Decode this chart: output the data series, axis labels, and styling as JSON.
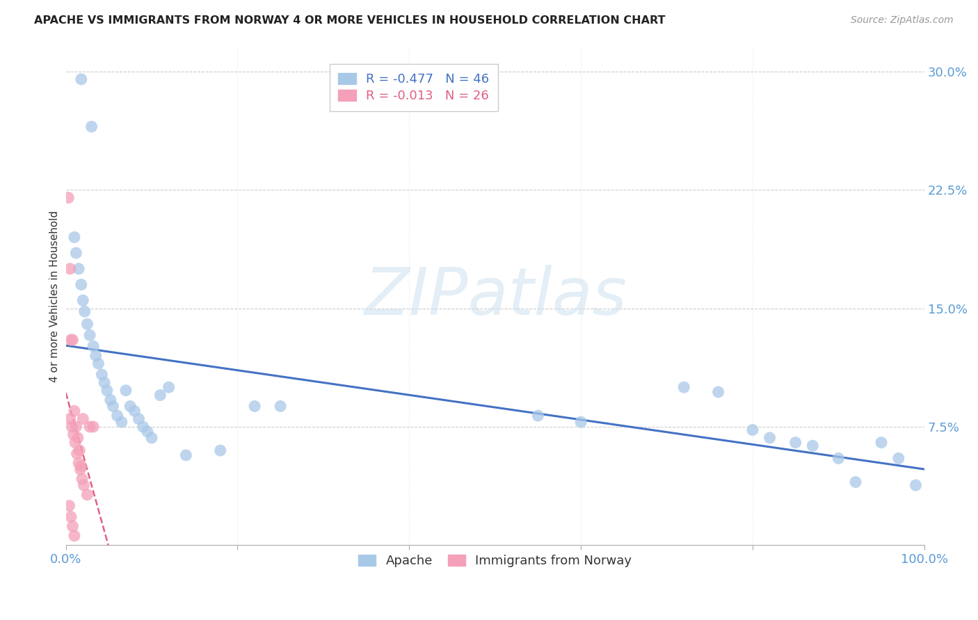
{
  "title": "APACHE VS IMMIGRANTS FROM NORWAY 4 OR MORE VEHICLES IN HOUSEHOLD CORRELATION CHART",
  "source": "Source: ZipAtlas.com",
  "ylabel": "4 or more Vehicles in Household",
  "apache_color": "#a8c8e8",
  "norway_color": "#f4a0b8",
  "apache_line_color": "#4472c4",
  "norway_line_color": "#e06080",
  "watermark_text": "ZIPatlas",
  "apache_x": [
    0.018,
    0.03,
    0.01,
    0.012,
    0.015,
    0.018,
    0.02,
    0.022,
    0.025,
    0.028,
    0.032,
    0.035,
    0.038,
    0.042,
    0.045,
    0.048,
    0.052,
    0.055,
    0.06,
    0.065,
    0.07,
    0.075,
    0.08,
    0.085,
    0.09,
    0.095,
    0.1,
    0.11,
    0.12,
    0.14,
    0.18,
    0.22,
    0.25,
    0.55,
    0.6,
    0.72,
    0.76,
    0.8,
    0.82,
    0.85,
    0.87,
    0.9,
    0.92,
    0.95,
    0.97,
    0.99
  ],
  "apache_y": [
    0.295,
    0.265,
    0.195,
    0.185,
    0.175,
    0.165,
    0.155,
    0.148,
    0.14,
    0.133,
    0.126,
    0.12,
    0.115,
    0.108,
    0.103,
    0.098,
    0.092,
    0.088,
    0.082,
    0.078,
    0.098,
    0.088,
    0.085,
    0.08,
    0.075,
    0.072,
    0.068,
    0.095,
    0.1,
    0.057,
    0.06,
    0.088,
    0.088,
    0.082,
    0.078,
    0.1,
    0.097,
    0.073,
    0.068,
    0.065,
    0.063,
    0.055,
    0.04,
    0.065,
    0.055,
    0.038
  ],
  "norway_x": [
    0.003,
    0.005,
    0.006,
    0.008,
    0.01,
    0.012,
    0.014,
    0.016,
    0.018,
    0.02,
    0.005,
    0.007,
    0.009,
    0.011,
    0.013,
    0.015,
    0.017,
    0.019,
    0.021,
    0.025,
    0.004,
    0.006,
    0.008,
    0.01,
    0.028,
    0.032
  ],
  "norway_y": [
    0.22,
    0.175,
    0.13,
    0.13,
    0.085,
    0.075,
    0.068,
    0.06,
    0.05,
    0.08,
    0.08,
    0.075,
    0.07,
    0.065,
    0.058,
    0.052,
    0.048,
    0.042,
    0.038,
    0.032,
    0.025,
    0.018,
    0.012,
    0.006,
    0.075,
    0.075
  ],
  "ytick_vals": [
    0.0,
    0.075,
    0.15,
    0.225,
    0.3
  ],
  "ytick_labels": [
    "",
    "7.5%",
    "15.0%",
    "22.5%",
    "30.0%"
  ],
  "xtick_vals": [
    0.0,
    0.2,
    0.4,
    0.6,
    0.8,
    1.0
  ],
  "xtick_labels": [
    "0.0%",
    "",
    "",
    "",
    "",
    "100.0%"
  ]
}
